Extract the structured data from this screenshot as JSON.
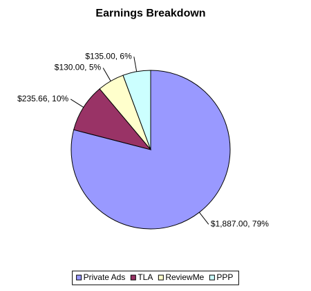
{
  "chart_data": {
    "type": "pie",
    "title": "Earnings Breakdown",
    "categories": [
      "Private Ads",
      "TLA",
      "ReviewMe",
      "PPP"
    ],
    "values": [
      1887,
      235.66,
      130,
      135
    ],
    "value_labels": [
      "$1,887.00, 79%",
      "$235.66, 10%",
      "$130.00, 5%",
      "$135.00, 6%"
    ],
    "colors": [
      "#9999ff",
      "#993366",
      "#ffffcc",
      "#ccffff"
    ],
    "legend": "bottom"
  }
}
